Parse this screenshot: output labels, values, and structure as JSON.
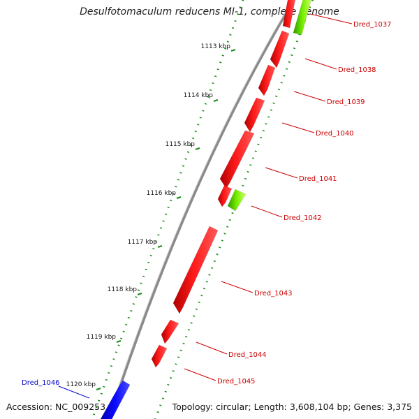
{
  "title": "Desulfotomaculum reducens MI-1, complete genome",
  "accession": "Accession: NC_009253",
  "topology": "Topology: circular; Length: 3,608,104 bp; Genes: 3,375",
  "colors": {
    "forward_gene": "#ff0000",
    "reverse_gene": "#0000ff",
    "rna_gene": "#66dd00",
    "backbone": "#777777",
    "tick_dots": "#1a8a1a",
    "label_forward": "#cc0000",
    "label_reverse": "#0000cc"
  },
  "ticks": [
    {
      "label": "1113 kbp"
    },
    {
      "label": "1114 kbp"
    },
    {
      "label": "1115 kbp"
    },
    {
      "label": "1116 kbp"
    },
    {
      "label": "1117 kbp"
    },
    {
      "label": "1118 kbp"
    },
    {
      "label": "1119 kbp"
    },
    {
      "label": "1120 kbp"
    }
  ],
  "genes": [
    {
      "name": "Dred_1037",
      "strand": "forward",
      "type": "rna"
    },
    {
      "name": "Dred_1038",
      "strand": "forward",
      "type": "cds"
    },
    {
      "name": "Dred_1039",
      "strand": "forward",
      "type": "cds"
    },
    {
      "name": "Dred_1040",
      "strand": "forward",
      "type": "cds"
    },
    {
      "name": "Dred_1041",
      "strand": "forward",
      "type": "cds"
    },
    {
      "name": "Dred_1042",
      "strand": "forward",
      "type": "rna"
    },
    {
      "name": "Dred_1043",
      "strand": "forward",
      "type": "cds"
    },
    {
      "name": "Dred_1044",
      "strand": "forward",
      "type": "cds"
    },
    {
      "name": "Dred_1045",
      "strand": "forward",
      "type": "cds"
    },
    {
      "name": "Dred_1046",
      "strand": "reverse",
      "type": "cds"
    }
  ]
}
